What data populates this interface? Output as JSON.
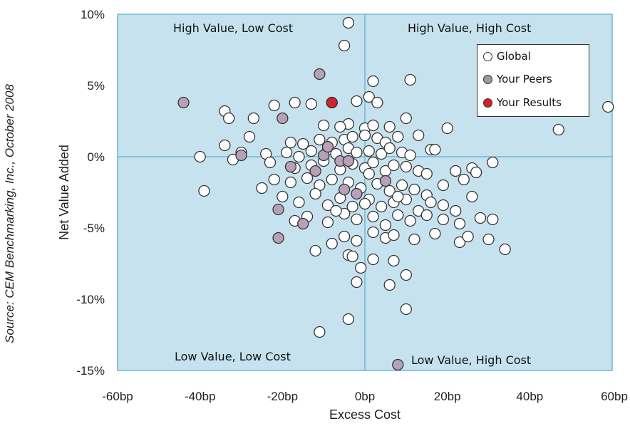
{
  "source": "Source: CEM Benchmarking, Inc., October 2008",
  "colors": {
    "plot_bg": "#c6e2ef",
    "axis_line": "#6bb7d3",
    "global": "#ffffff",
    "peers": "#b8a0b8",
    "results": "#d1202e"
  },
  "chart_data": {
    "type": "scatter",
    "xlabel": "Excess Cost",
    "ylabel": "Net Value Added",
    "xlim": [
      -60,
      60
    ],
    "ylim": [
      -15,
      10
    ],
    "xticks": [
      "-60bp",
      "-40bp",
      "-20bp",
      "0bp",
      "20bp",
      "40bp",
      "60bp"
    ],
    "yticks": [
      "10%",
      "5%",
      "0%",
      "-5%",
      "-10%",
      "-15%"
    ],
    "grid": false,
    "legend_position": "top-right",
    "quadrants": {
      "top_left": "High Value, Low Cost",
      "top_right": "High Value, High Cost",
      "bottom_left": "Low Value, Low Cost",
      "bottom_right": "Low Value, High Cost"
    },
    "series": [
      {
        "name": "Global",
        "points": [
          [
            -4,
            9.4
          ],
          [
            -5,
            7.8
          ],
          [
            2,
            5.3
          ],
          [
            11,
            5.4
          ],
          [
            -17,
            3.8
          ],
          [
            -13,
            3.7
          ],
          [
            -8,
            3.8
          ],
          [
            -4,
            2.3
          ],
          [
            -2,
            3.9
          ],
          [
            1,
            4.2
          ],
          [
            3,
            3.8
          ],
          [
            -34,
            3.2
          ],
          [
            -33,
            2.7
          ],
          [
            -27,
            2.7
          ],
          [
            -22,
            3.6
          ],
          [
            -10,
            2.2
          ],
          [
            -6,
            2.1
          ],
          [
            0,
            2.0
          ],
          [
            2,
            2.2
          ],
          [
            6,
            2.1
          ],
          [
            10,
            2.7
          ],
          [
            20,
            2.0
          ],
          [
            -28,
            1.4
          ],
          [
            -18,
            1.0
          ],
          [
            -15,
            0.9
          ],
          [
            -11,
            1.2
          ],
          [
            -8,
            1.0
          ],
          [
            -5,
            1.2
          ],
          [
            -3,
            1.4
          ],
          [
            0,
            1.5
          ],
          [
            3,
            1.3
          ],
          [
            5,
            1.0
          ],
          [
            8,
            1.4
          ],
          [
            13,
            1.5
          ],
          [
            -34,
            0.8
          ],
          [
            -30,
            0.3
          ],
          [
            -24,
            0.2
          ],
          [
            -19,
            0.3
          ],
          [
            -16,
            0.0
          ],
          [
            -13,
            0.4
          ],
          [
            -9,
            0.5
          ],
          [
            -7,
            0.2
          ],
          [
            -4,
            0.6
          ],
          [
            -2,
            0.3
          ],
          [
            1,
            0.4
          ],
          [
            4,
            0.2
          ],
          [
            6,
            0.6
          ],
          [
            9,
            0.3
          ],
          [
            11,
            0.1
          ],
          [
            16,
            0.5
          ],
          [
            17,
            0.5
          ],
          [
            47,
            1.9
          ],
          [
            59,
            3.5
          ],
          [
            -40,
            0.0
          ],
          [
            -32,
            -0.2
          ],
          [
            -23,
            -0.4
          ],
          [
            -17,
            -0.8
          ],
          [
            -13,
            -0.6
          ],
          [
            -10,
            -0.3
          ],
          [
            -6,
            -0.9
          ],
          [
            -3,
            -0.5
          ],
          [
            0,
            -0.8
          ],
          [
            2,
            -0.4
          ],
          [
            5,
            -1.0
          ],
          [
            7,
            -0.6
          ],
          [
            10,
            -0.7
          ],
          [
            13,
            -1.0
          ],
          [
            15,
            -1.2
          ],
          [
            22,
            -1.0
          ],
          [
            26,
            -0.8
          ],
          [
            31,
            -0.4
          ],
          [
            -39,
            -2.4
          ],
          [
            -25,
            -2.2
          ],
          [
            -22,
            -1.6
          ],
          [
            -18,
            -1.8
          ],
          [
            -14,
            -1.5
          ],
          [
            -11,
            -2.0
          ],
          [
            -8,
            -1.6
          ],
          [
            -4,
            -1.8
          ],
          [
            -1,
            -2.2
          ],
          [
            3,
            -1.9
          ],
          [
            6,
            -2.4
          ],
          [
            9,
            -2.0
          ],
          [
            12,
            -2.3
          ],
          [
            15,
            -2.7
          ],
          [
            19,
            -2.0
          ],
          [
            24,
            -1.6
          ],
          [
            27,
            -1.1
          ],
          [
            -20,
            -2.8
          ],
          [
            -16,
            -3.2
          ],
          [
            -12,
            -2.6
          ],
          [
            -9,
            -3.4
          ],
          [
            -6,
            -2.9
          ],
          [
            -3,
            -3.5
          ],
          [
            1,
            -3.0
          ],
          [
            4,
            -3.5
          ],
          [
            7,
            -3.2
          ],
          [
            10,
            -3.0
          ],
          [
            13,
            -3.8
          ],
          [
            16,
            -3.2
          ],
          [
            19,
            -3.4
          ],
          [
            22,
            -3.8
          ],
          [
            26,
            -2.8
          ],
          [
            -17,
            -4.5
          ],
          [
            -14,
            -4.2
          ],
          [
            -9,
            -4.6
          ],
          [
            -5,
            -4.0
          ],
          [
            -2,
            -4.4
          ],
          [
            2,
            -4.2
          ],
          [
            5,
            -4.8
          ],
          [
            8,
            -4.1
          ],
          [
            11,
            -4.5
          ],
          [
            15,
            -4.1
          ],
          [
            19,
            -4.4
          ],
          [
            23,
            -4.7
          ],
          [
            28,
            -4.3
          ],
          [
            31,
            -4.4
          ],
          [
            -12,
            -6.6
          ],
          [
            -8,
            -6.1
          ],
          [
            -5,
            -5.6
          ],
          [
            -2,
            -5.9
          ],
          [
            2,
            -5.3
          ],
          [
            5,
            -5.7
          ],
          [
            7,
            -5.5
          ],
          [
            12,
            -5.8
          ],
          [
            17,
            -5.4
          ],
          [
            23,
            -6.0
          ],
          [
            25,
            -5.6
          ],
          [
            30,
            -5.8
          ],
          [
            34,
            -6.5
          ],
          [
            -4,
            -6.9
          ],
          [
            -1,
            -7.8
          ],
          [
            2,
            -7.2
          ],
          [
            7,
            -7.3
          ],
          [
            -2,
            -8.8
          ],
          [
            6,
            -9.0
          ],
          [
            10,
            -8.3
          ],
          [
            10,
            -10.7
          ],
          [
            -4,
            -11.4
          ],
          [
            -11,
            -12.3
          ],
          [
            -3,
            -7.0
          ],
          [
            0,
            -3.3
          ],
          [
            1,
            -1.2
          ],
          [
            -7,
            -3.8
          ],
          [
            8,
            -2.8
          ]
        ]
      },
      {
        "name": "Your Peers",
        "points": [
          [
            -44,
            3.8
          ],
          [
            -11,
            5.8
          ],
          [
            -20,
            2.7
          ],
          [
            -30,
            0.1
          ],
          [
            -10,
            0.1
          ],
          [
            -9,
            0.7
          ],
          [
            -6,
            -0.3
          ],
          [
            -4,
            -0.3
          ],
          [
            -12,
            -1.0
          ],
          [
            -18,
            -0.7
          ],
          [
            -5,
            -2.3
          ],
          [
            -2,
            -2.6
          ],
          [
            5,
            -1.7
          ],
          [
            -21,
            -3.7
          ],
          [
            -15,
            -4.7
          ],
          [
            -21,
            -5.7
          ],
          [
            8,
            -14.6
          ]
        ]
      },
      {
        "name": "Your Results",
        "points": [
          [
            -8,
            3.8
          ]
        ]
      }
    ]
  }
}
